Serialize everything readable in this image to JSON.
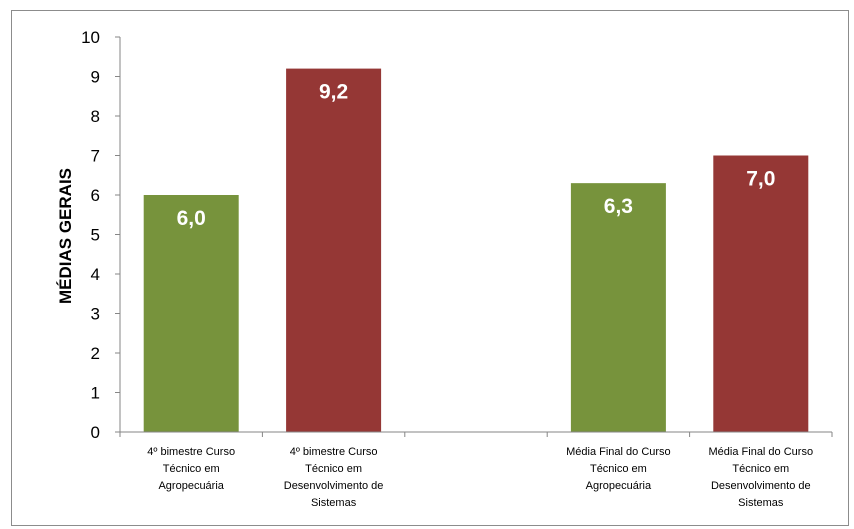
{
  "chart_data": {
    "type": "bar",
    "title": "",
    "xlabel": "",
    "ylabel": "MÉDIAS GERAIS",
    "ylim": [
      0,
      10
    ],
    "yticks": [
      "0",
      "1",
      "2",
      "3",
      "4",
      "5",
      "6",
      "7",
      "8",
      "9",
      "10"
    ],
    "grid": false,
    "legend": "none",
    "categories": [
      [
        "4º bimestre Curso",
        "Técnico em",
        "Agropecuária"
      ],
      [
        "4º bimestre Curso",
        "Técnico em",
        "Desenvolvimento de",
        "Sistemas"
      ],
      [
        "",
        ""
      ],
      [
        "Média Final do Curso",
        "Técnico em",
        "Agropecuária"
      ],
      [
        "Média Final do Curso",
        "Técnico em",
        "Desenvolvimento de",
        "Sistemas"
      ]
    ],
    "values": [
      6.0,
      9.2,
      null,
      6.3,
      7.0
    ],
    "data_labels": [
      "6,0",
      "9,2",
      "",
      "6,3",
      "7,0"
    ],
    "colors": [
      "#77933c",
      "#953735",
      null,
      "#77933c",
      "#953735"
    ]
  }
}
